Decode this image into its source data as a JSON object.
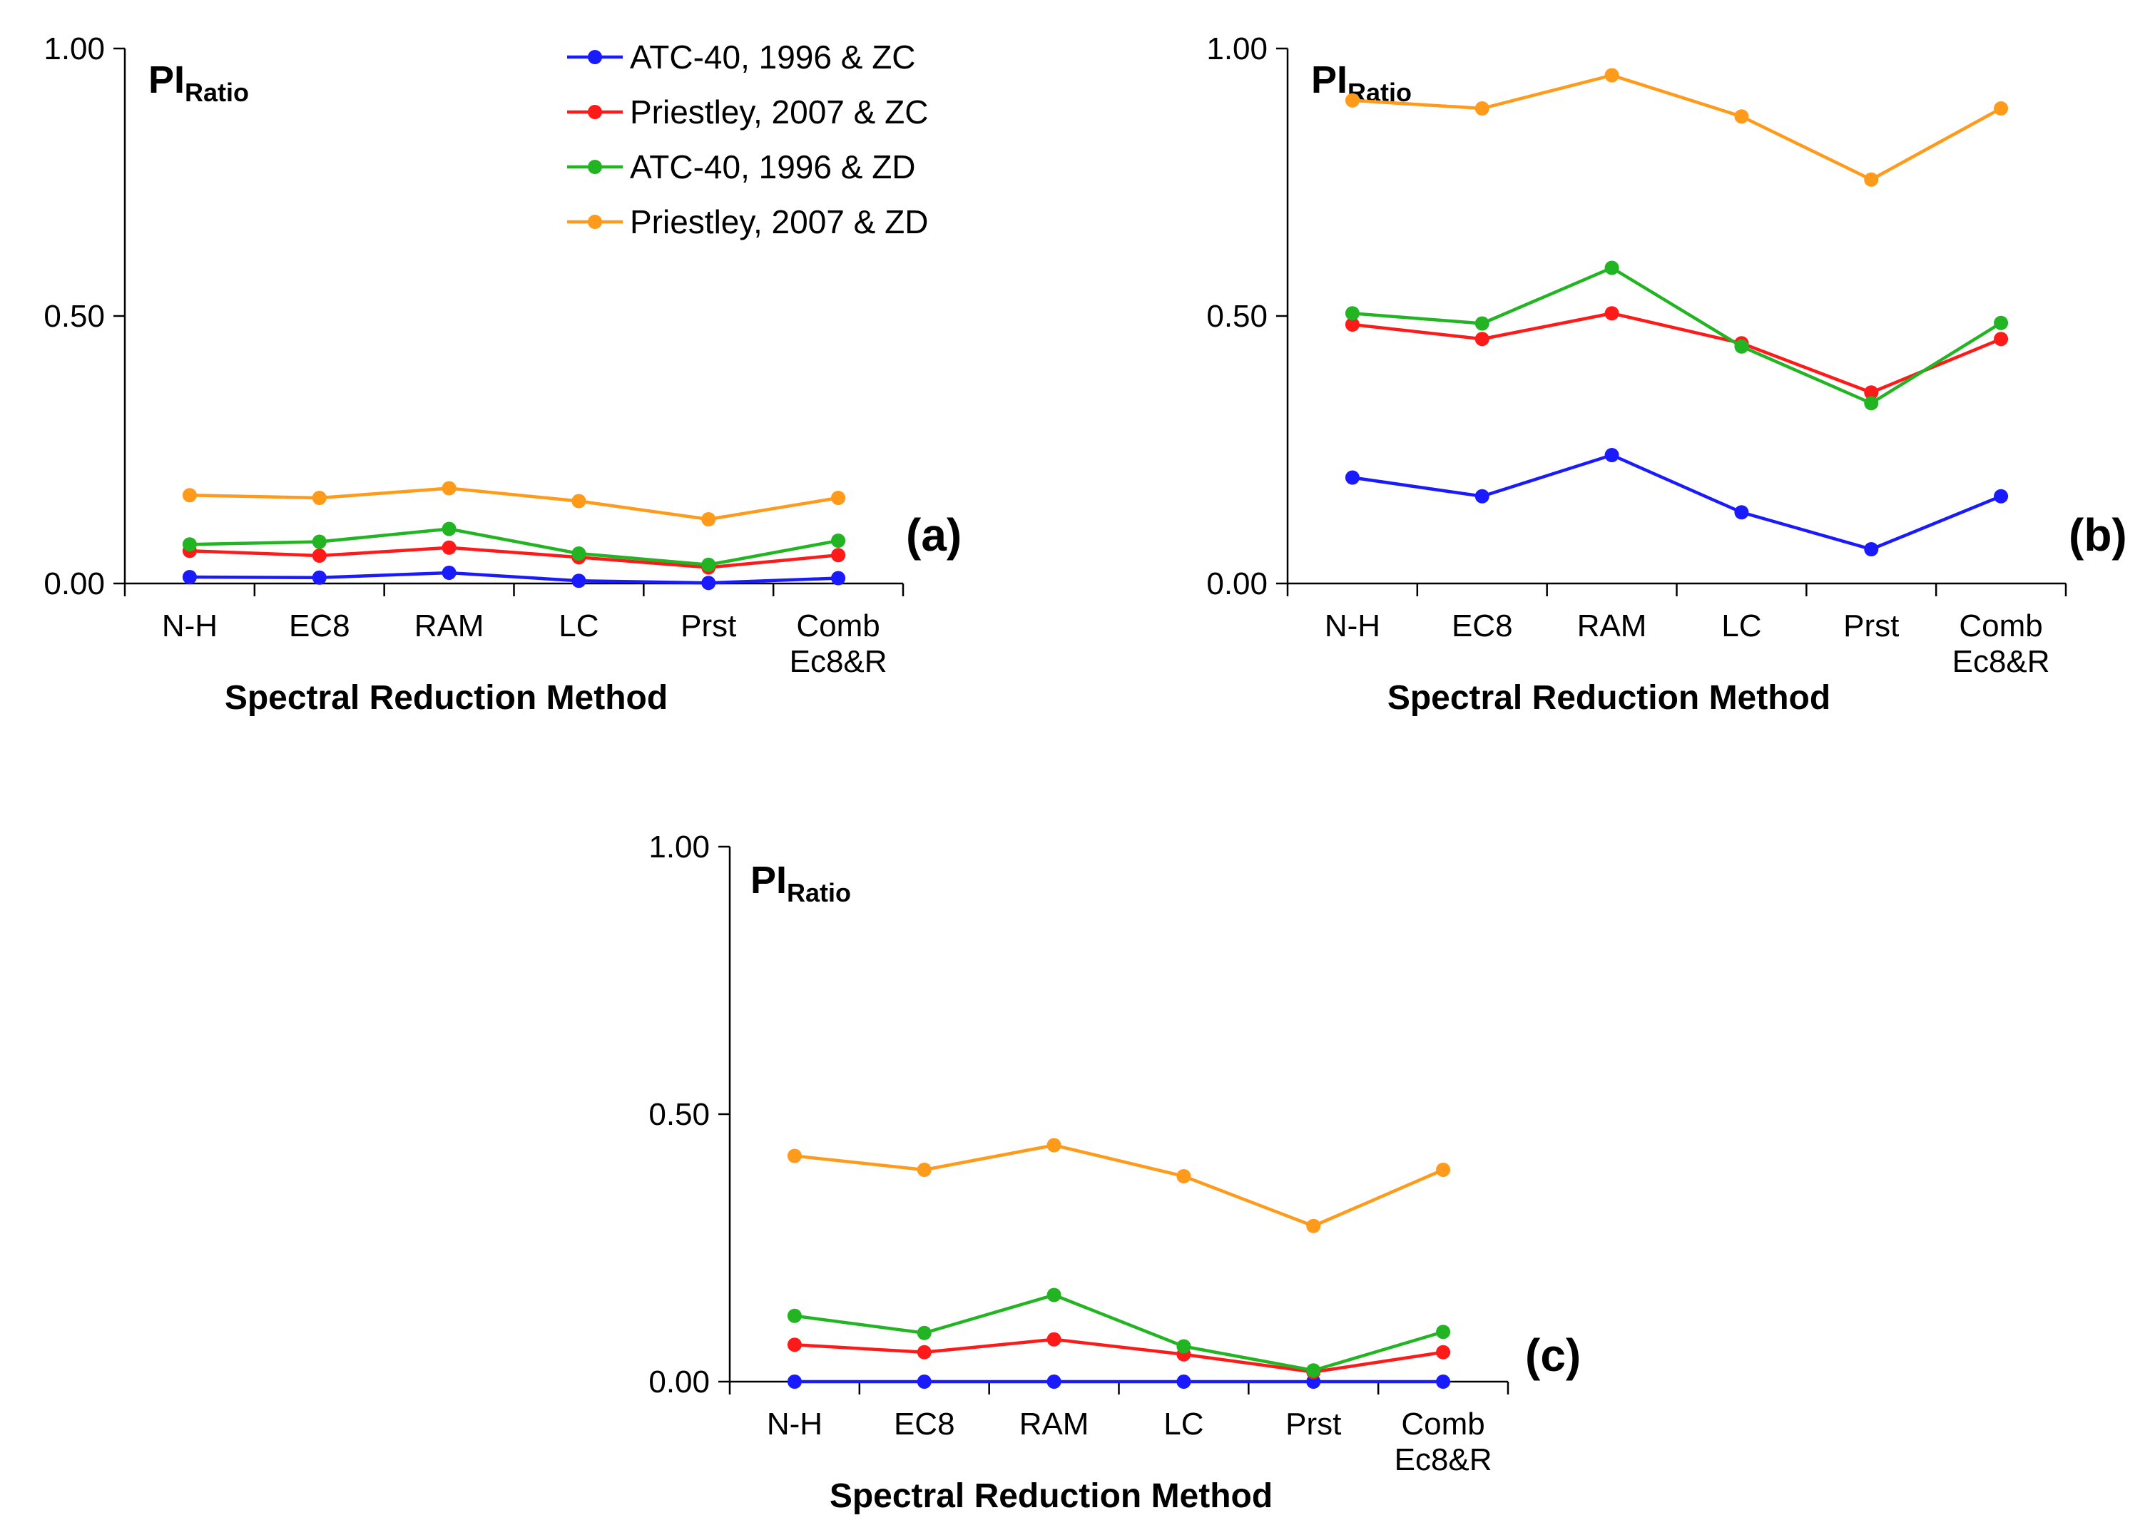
{
  "chart_data": [
    {
      "panel_label": "(a)",
      "type": "line",
      "title": "",
      "ylabel_main": "PI",
      "ylabel_sub": "Ratio",
      "xlabel": "Spectral Reduction Method",
      "categories": [
        [
          "N-H"
        ],
        [
          "EC8"
        ],
        [
          "RAM"
        ],
        [
          "LC"
        ],
        [
          "Prst"
        ],
        [
          "Comb",
          "Ec8&R"
        ]
      ],
      "ylim": [
        0,
        1
      ],
      "yticks": [
        "0.00",
        "0.50",
        "1.00"
      ],
      "ytick_values": [
        0,
        0.5,
        1
      ],
      "grid": false,
      "legend_position": "top-right",
      "series": [
        {
          "name": "ATC-40, 1996 & ZC",
          "color": "#1a1aff",
          "values": [
            0.012,
            0.011,
            0.02,
            0.005,
            0.001,
            0.01
          ]
        },
        {
          "name": "Priestley, 2007 & ZC",
          "color": "#ff1a1a",
          "values": [
            0.061,
            0.052,
            0.067,
            0.049,
            0.03,
            0.053
          ]
        },
        {
          "name": "ATC-40, 1996 & ZD",
          "color": "#22b422",
          "values": [
            0.073,
            0.078,
            0.102,
            0.056,
            0.035,
            0.08
          ]
        },
        {
          "name": "Priestley, 2007 & ZD",
          "color": "#ff9a1a",
          "values": [
            0.165,
            0.16,
            0.178,
            0.154,
            0.12,
            0.16
          ]
        }
      ]
    },
    {
      "panel_label": "(b)",
      "type": "line",
      "title": "",
      "ylabel_main": "PI",
      "ylabel_sub": "Ratio",
      "xlabel": "Spectral Reduction Method",
      "categories": [
        [
          "N-H"
        ],
        [
          "EC8"
        ],
        [
          "RAM"
        ],
        [
          "LC"
        ],
        [
          "Prst"
        ],
        [
          "Comb",
          "Ec8&R"
        ]
      ],
      "ylim": [
        0,
        1
      ],
      "yticks": [
        "0.00",
        "0.50",
        "1.00"
      ],
      "ytick_values": [
        0,
        0.5,
        1
      ],
      "grid": false,
      "series": [
        {
          "name": "ATC-40, 1996 & ZC",
          "color": "#1a1aff",
          "values": [
            0.198,
            0.163,
            0.24,
            0.133,
            0.064,
            0.163
          ]
        },
        {
          "name": "Priestley, 2007 & ZC",
          "color": "#ff1a1a",
          "values": [
            0.484,
            0.457,
            0.505,
            0.449,
            0.357,
            0.457
          ]
        },
        {
          "name": "ATC-40, 1996 & ZD",
          "color": "#22b422",
          "values": [
            0.505,
            0.486,
            0.59,
            0.443,
            0.337,
            0.487
          ]
        },
        {
          "name": "Priestley, 2007 & ZD",
          "color": "#ff9a1a",
          "values": [
            0.903,
            0.888,
            0.95,
            0.873,
            0.755,
            0.888
          ]
        }
      ]
    },
    {
      "panel_label": "(c)",
      "type": "line",
      "title": "",
      "ylabel_main": "PI",
      "ylabel_sub": "Ratio",
      "xlabel": "Spectral Reduction Method",
      "categories": [
        [
          "N-H"
        ],
        [
          "EC8"
        ],
        [
          "RAM"
        ],
        [
          "LC"
        ],
        [
          "Prst"
        ],
        [
          "Comb",
          "Ec8&R"
        ]
      ],
      "ylim": [
        0,
        1
      ],
      "yticks": [
        "0.00",
        "0.50",
        "1.00"
      ],
      "ytick_values": [
        0,
        0.5,
        1
      ],
      "grid": false,
      "series": [
        {
          "name": "ATC-40, 1996 & ZC",
          "color": "#1a1aff",
          "values": [
            0.0,
            0.0,
            0.0,
            0.0,
            0.0,
            0.0
          ]
        },
        {
          "name": "Priestley, 2007 & ZC",
          "color": "#ff1a1a",
          "values": [
            0.069,
            0.055,
            0.079,
            0.051,
            0.018,
            0.055
          ]
        },
        {
          "name": "ATC-40, 1996 & ZD",
          "color": "#22b422",
          "values": [
            0.123,
            0.091,
            0.162,
            0.066,
            0.021,
            0.093
          ]
        },
        {
          "name": "Priestley, 2007 & ZD",
          "color": "#ff9a1a",
          "values": [
            0.422,
            0.396,
            0.442,
            0.384,
            0.291,
            0.396
          ]
        }
      ]
    }
  ]
}
